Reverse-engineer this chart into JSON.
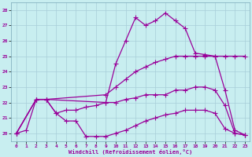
{
  "xlabel": "Windchill (Refroidissement éolien,°C)",
  "bg_color": "#c8eef0",
  "grid_color": "#a8cdd8",
  "line_color": "#990099",
  "xlim": [
    -0.5,
    23.5
  ],
  "ylim": [
    19.5,
    28.5
  ],
  "xticks": [
    0,
    1,
    2,
    3,
    4,
    5,
    6,
    7,
    8,
    9,
    10,
    11,
    12,
    13,
    14,
    15,
    16,
    17,
    18,
    19,
    20,
    21,
    22,
    23
  ],
  "yticks": [
    20,
    21,
    22,
    23,
    24,
    25,
    26,
    27,
    28
  ],
  "line1_x": [
    0,
    1,
    2,
    3,
    4,
    5,
    6,
    7,
    8,
    9,
    10,
    11,
    12,
    13,
    14,
    15,
    16,
    17,
    18,
    19,
    20,
    21,
    22,
    23
  ],
  "line1_y": [
    20.0,
    20.2,
    22.2,
    22.2,
    21.3,
    20.8,
    20.8,
    19.8,
    19.8,
    19.8,
    20.0,
    20.2,
    20.5,
    20.8,
    21.0,
    21.2,
    21.3,
    21.5,
    21.5,
    21.5,
    21.3,
    20.3,
    20.0,
    19.9
  ],
  "line2_x": [
    0,
    2,
    3,
    9,
    10,
    11,
    12,
    13,
    14,
    15,
    16,
    17,
    18,
    19,
    20,
    21,
    22,
    23
  ],
  "line2_y": [
    20.0,
    22.2,
    22.2,
    22.0,
    24.5,
    26.0,
    27.5,
    27.0,
    27.3,
    27.8,
    27.3,
    26.8,
    25.2,
    25.1,
    25.0,
    22.8,
    20.2,
    19.9
  ],
  "line3_x": [
    0,
    2,
    3,
    9,
    10,
    11,
    12,
    13,
    14,
    15,
    16,
    17,
    18,
    19,
    20,
    21,
    22,
    23
  ],
  "line3_y": [
    20.0,
    22.2,
    22.2,
    22.5,
    23.0,
    23.5,
    24.0,
    24.3,
    24.6,
    24.8,
    25.0,
    25.0,
    25.0,
    25.0,
    25.0,
    25.0,
    25.0,
    25.0
  ],
  "line4_x": [
    0,
    2,
    3,
    4,
    5,
    6,
    7,
    8,
    9,
    10,
    11,
    12,
    13,
    14,
    15,
    16,
    17,
    18,
    19,
    20,
    21,
    22,
    23
  ],
  "line4_y": [
    20.0,
    22.2,
    22.2,
    21.3,
    21.5,
    21.5,
    21.7,
    21.8,
    22.0,
    22.0,
    22.2,
    22.3,
    22.5,
    22.5,
    22.5,
    22.8,
    22.8,
    23.0,
    23.0,
    22.8,
    21.8,
    20.0,
    19.9
  ]
}
